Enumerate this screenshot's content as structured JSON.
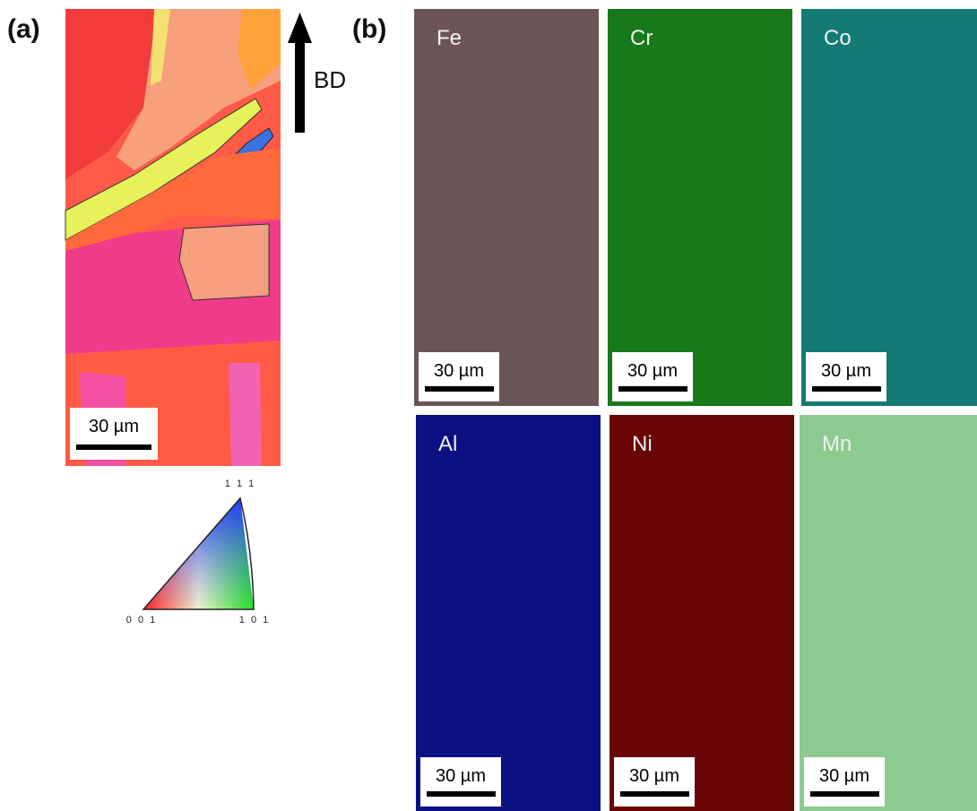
{
  "panel_a": {
    "label": "(a)",
    "direction_label": "BD",
    "scale_bar": "30 µm",
    "ipf_key": {
      "top": "1 1 1",
      "left": "0 0 1",
      "right": "1 0 1"
    }
  },
  "panel_b": {
    "label": "(b)",
    "maps": [
      {
        "element": "Fe",
        "color": "#6c5556",
        "scale_bar": "30 µm"
      },
      {
        "element": "Cr",
        "color": "#17791a",
        "scale_bar": "30 µm"
      },
      {
        "element": "Co",
        "color": "#137a76",
        "scale_bar": "30 µm"
      },
      {
        "element": "Al",
        "color": "#0b1082",
        "scale_bar": "30 µm"
      },
      {
        "element": "Ni",
        "color": "#6b0606",
        "scale_bar": "30 µm"
      },
      {
        "element": "Mn",
        "color": "#8dca8f",
        "scale_bar": "30 µm"
      }
    ]
  }
}
